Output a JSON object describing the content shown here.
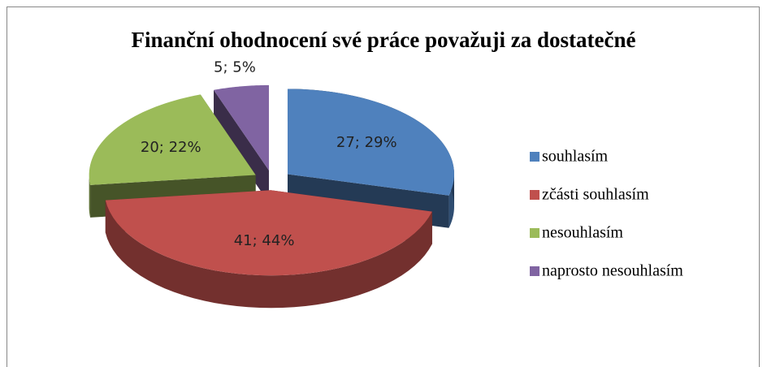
{
  "chart_data": {
    "type": "pie3d",
    "title": "Finanční ohodnocení své práce považuji za dostatečné",
    "categories": [
      "souhlasím",
      "zčásti souhlasím",
      "nesouhlasím",
      "naprosto nesouhlasím"
    ],
    "values": [
      27,
      41,
      20,
      5
    ],
    "value_labels": [
      "27; 29%",
      "41; 44%",
      "20; 22%",
      "5; 5%"
    ],
    "colors": [
      "#4f81bd",
      "#c0504d",
      "#9bbb59",
      "#8064a2"
    ],
    "legend": "right"
  }
}
